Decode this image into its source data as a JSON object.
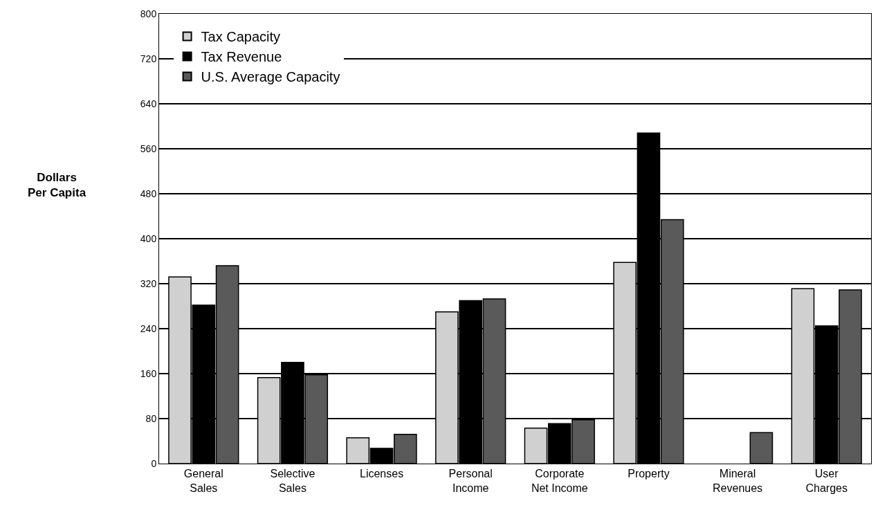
{
  "chart_data": {
    "type": "bar",
    "ylabel": "Dollars\nPer Capita",
    "categories": [
      "General\nSales",
      "Selective\nSales",
      "Licenses",
      "Personal\nIncome",
      "Corporate\nNet Income",
      "Property",
      "Mineral\nRevenues",
      "User\nCharges"
    ],
    "series": [
      {
        "name": "Tax Capacity",
        "color": "#d0d0d0",
        "values": [
          332,
          153,
          46,
          270,
          63,
          358,
          null,
          311
        ]
      },
      {
        "name": "Tax Revenue",
        "color": "#000000",
        "values": [
          282,
          180,
          27,
          290,
          71,
          588,
          null,
          245
        ]
      },
      {
        "name": "U.S. Average Capacity",
        "color": "#5a5a5a",
        "values": [
          352,
          158,
          52,
          293,
          78,
          434,
          55,
          309
        ]
      }
    ],
    "ylim": [
      0,
      800
    ],
    "yticks": [
      0,
      80,
      160,
      240,
      320,
      400,
      480,
      560,
      640,
      720,
      800
    ],
    "grid": "y",
    "legend": "top left"
  }
}
